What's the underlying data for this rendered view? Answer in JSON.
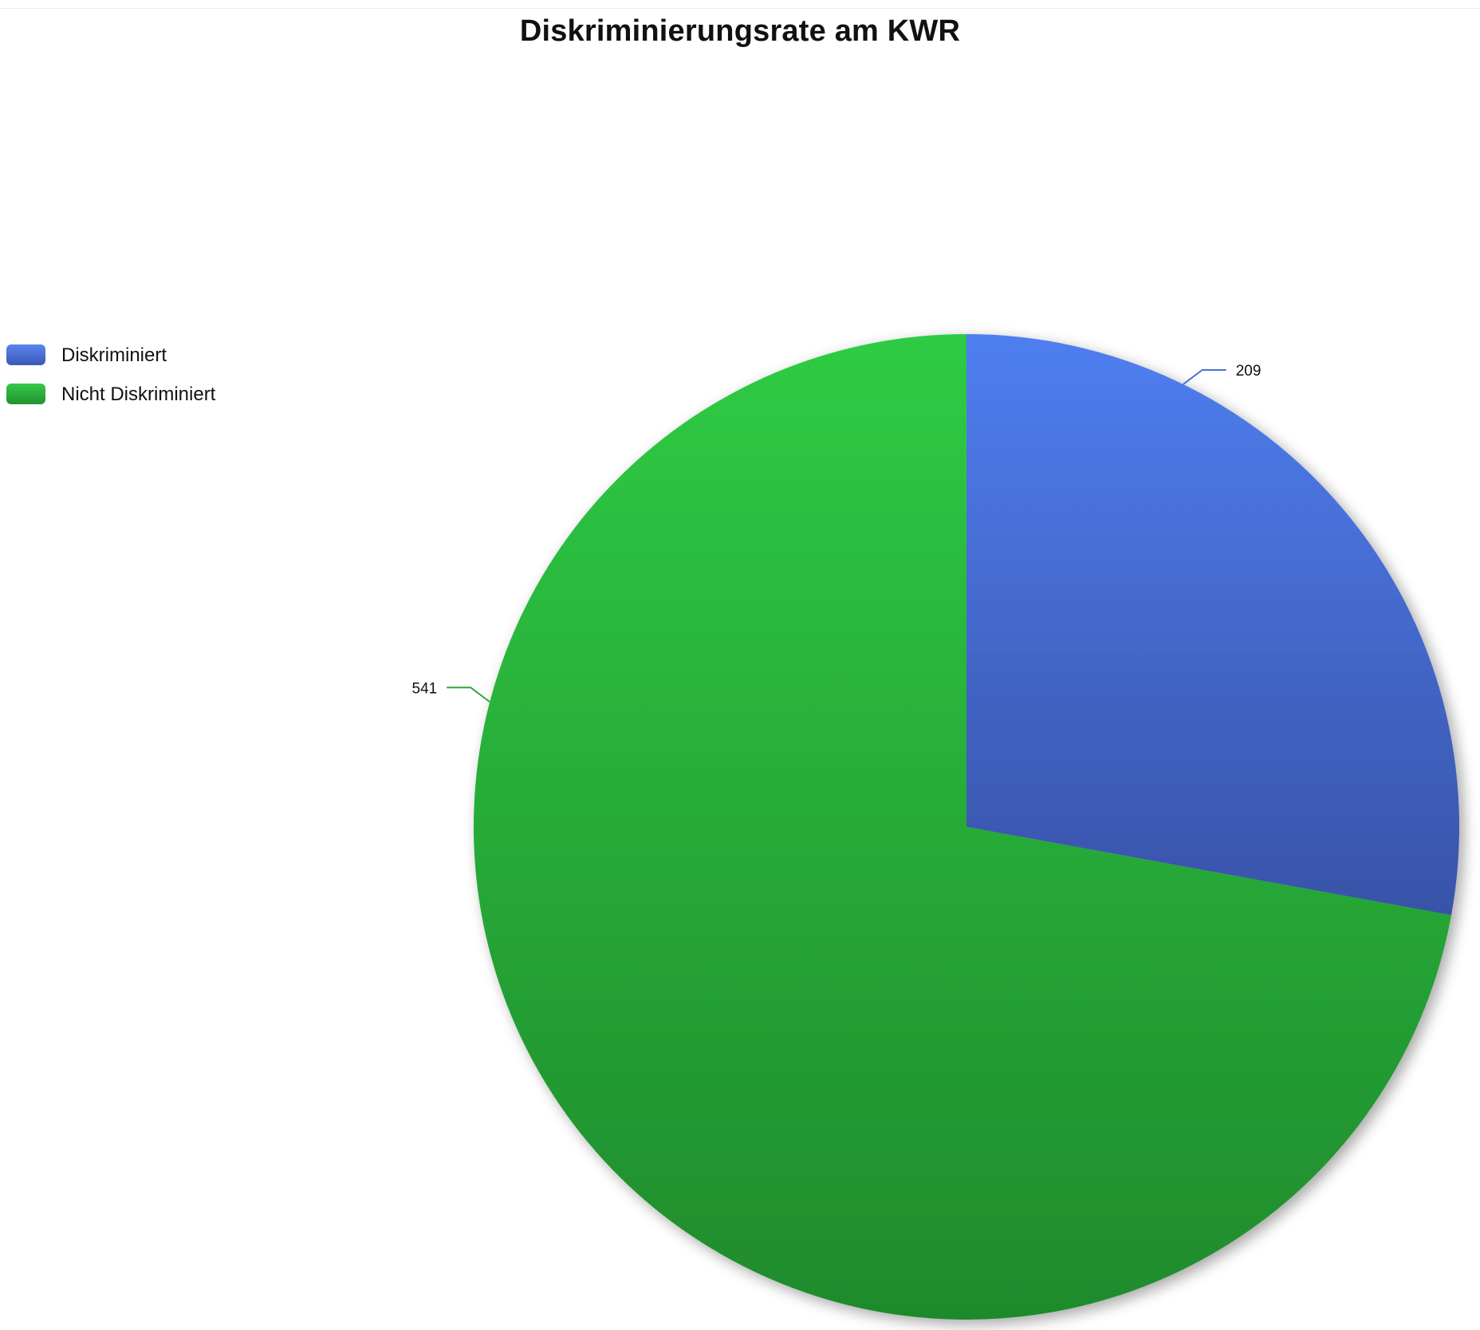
{
  "chart_data": {
    "type": "pie",
    "title": "Diskriminierungsrate am KWR",
    "categories": [
      "Diskriminiert",
      "Nicht Diskriminiert"
    ],
    "values": [
      209,
      541
    ],
    "colors": [
      "#4a74e0",
      "#2bbf3f"
    ],
    "data_labels": [
      "209",
      "541"
    ],
    "legend_position": "left",
    "start_angle": "12 o'clock, clockwise"
  }
}
